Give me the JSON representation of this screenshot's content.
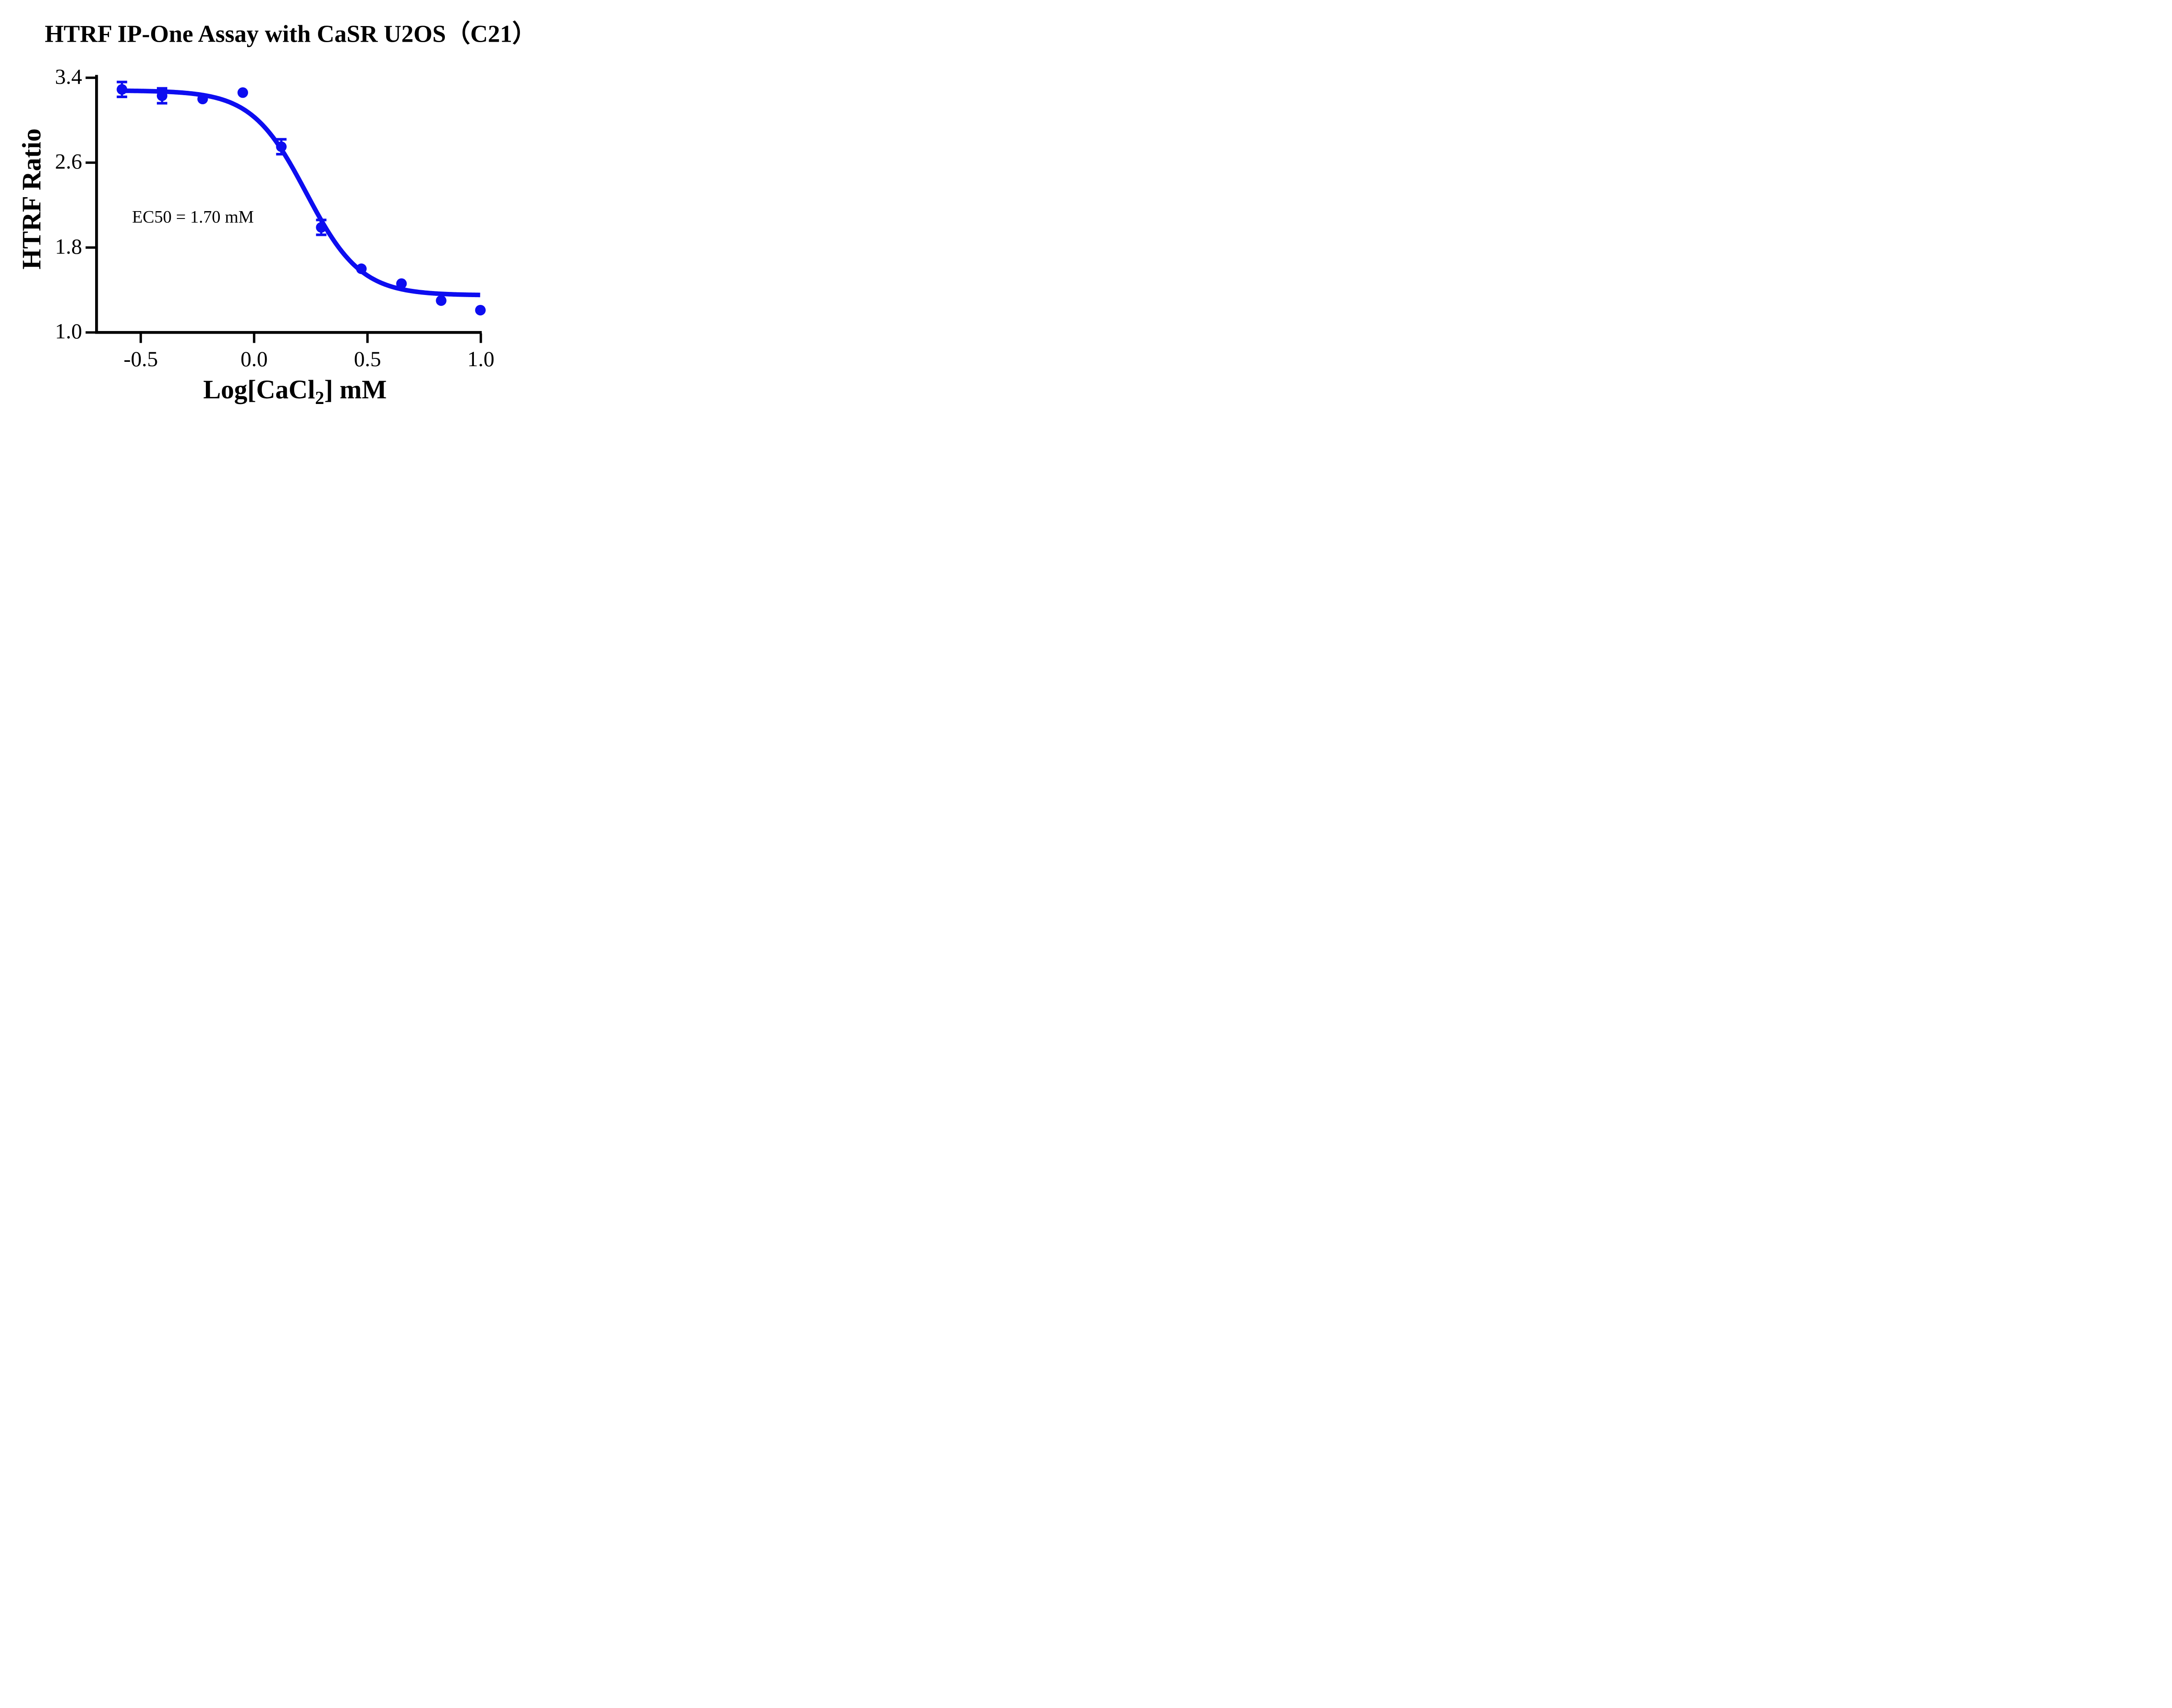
{
  "title": "HTRF IP-One Assay with CaSR U2OS（C21）",
  "annotation": "EC50 = 1.70 mM",
  "y_axis": {
    "label": "HTRF Ratio"
  },
  "x_axis": {
    "label_prefix": "Log[CaCl",
    "label_sub": "2",
    "label_suffix": "] mM"
  },
  "chart_data": {
    "type": "scatter",
    "title": "HTRF IP-One Assay with CaSR U2OS（C21）",
    "xlabel": "Log[CaCl2] mM",
    "ylabel": "HTRF Ratio",
    "x_ticks": [
      -0.5,
      0.0,
      0.5,
      1.0
    ],
    "y_ticks": [
      3.4,
      2.6,
      1.8,
      1.0
    ],
    "xlim": [
      -0.7,
      1.0
    ],
    "ylim": [
      1.0,
      3.4
    ],
    "grid": false,
    "legend": false,
    "marker_color": "#0d0df0",
    "series": [
      {
        "name": "CaSR U2OS (C21)",
        "points": [
          {
            "x": -0.583,
            "y": 3.29,
            "err": 0.07
          },
          {
            "x": -0.406,
            "y": 3.23,
            "err": 0.07
          },
          {
            "x": -0.227,
            "y": 3.2,
            "err": null
          },
          {
            "x": -0.05,
            "y": 3.26,
            "err": null
          },
          {
            "x": 0.12,
            "y": 2.75,
            "err": 0.07
          },
          {
            "x": 0.296,
            "y": 1.99,
            "err": 0.07
          },
          {
            "x": 0.473,
            "y": 1.6,
            "err": null
          },
          {
            "x": 0.65,
            "y": 1.46,
            "err": null
          },
          {
            "x": 0.825,
            "y": 1.3,
            "err": null
          },
          {
            "x": 0.998,
            "y": 1.21,
            "err": null
          }
        ]
      }
    ],
    "curve_fit": {
      "model": "four_parameter_logistic",
      "top": 3.28,
      "bottom": 1.35,
      "log_ec50": 0.23,
      "hill_slope": 3.6,
      "ec50_mM": 1.7,
      "x_range": [
        -0.583,
        0.998
      ]
    },
    "annotation": "EC50 = 1.70 mM"
  }
}
